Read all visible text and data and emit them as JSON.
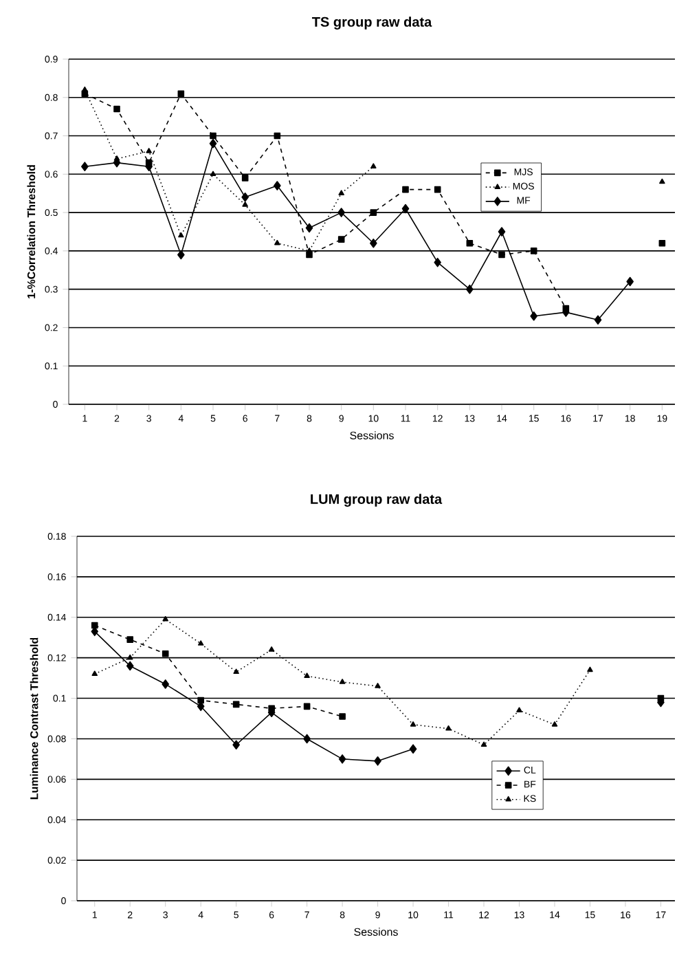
{
  "chart_data": [
    {
      "type": "line",
      "title": "TS group raw data",
      "xlabel": "Sessions",
      "ylabel": "1-%Correlation Threshold",
      "categories": [
        "1",
        "2",
        "3",
        "4",
        "5",
        "6",
        "7",
        "8",
        "9",
        "10",
        "11",
        "12",
        "13",
        "14",
        "15",
        "16",
        "17",
        "18",
        "19"
      ],
      "ylim": [
        0,
        0.9
      ],
      "yticks": [
        0,
        0.1,
        0.2,
        0.3,
        0.4,
        0.5,
        0.6,
        0.7,
        0.8,
        0.9
      ],
      "grid": "y",
      "legend": "top right",
      "series": [
        {
          "name": "MJS",
          "color": "#000000",
          "marker": "square",
          "line_style": "dashed",
          "values": [
            0.81,
            0.77,
            0.63,
            0.81,
            0.7,
            0.59,
            0.7,
            0.39,
            0.43,
            0.5,
            0.56,
            0.56,
            0.42,
            0.39,
            0.4,
            0.25,
            null,
            null,
            0.42
          ]
        },
        {
          "name": "MOS",
          "color": "#000000",
          "marker": "triangle",
          "line_style": "dotted",
          "values": [
            0.82,
            0.64,
            0.66,
            0.44,
            0.6,
            0.52,
            0.42,
            0.4,
            0.55,
            0.62,
            null,
            null,
            null,
            null,
            null,
            null,
            null,
            null,
            0.58
          ]
        },
        {
          "name": "MF",
          "color": "#000000",
          "marker": "diamond",
          "line_style": "solid",
          "values": [
            0.62,
            0.63,
            0.62,
            0.39,
            0.68,
            0.54,
            0.57,
            0.46,
            0.5,
            0.42,
            0.51,
            0.37,
            0.3,
            0.45,
            0.23,
            0.24,
            0.22,
            0.32,
            null
          ]
        }
      ]
    },
    {
      "type": "line",
      "title": "LUM group raw data",
      "xlabel": "Sessions",
      "ylabel": "Luminance Contrast Threshold",
      "categories": [
        "1",
        "2",
        "3",
        "4",
        "5",
        "6",
        "7",
        "8",
        "9",
        "10",
        "11",
        "12",
        "13",
        "14",
        "15",
        "16",
        "17"
      ],
      "ylim": [
        0,
        0.18
      ],
      "yticks": [
        0,
        0.02,
        0.04,
        0.06,
        0.08,
        {
          "value": 0.1,
          "label": "0.1"
        },
        0.12,
        0.14,
        0.16,
        0.18
      ],
      "grid": "y",
      "legend": "bottom right",
      "series": [
        {
          "name": "CL",
          "color": "#000000",
          "marker": "diamond",
          "line_style": "solid",
          "values": [
            0.133,
            0.116,
            0.107,
            0.096,
            0.077,
            0.093,
            0.08,
            0.07,
            0.069,
            0.075,
            null,
            null,
            null,
            null,
            null,
            null,
            0.098
          ]
        },
        {
          "name": "BF",
          "color": "#000000",
          "marker": "square",
          "line_style": "dashed",
          "values": [
            0.136,
            0.129,
            0.122,
            0.099,
            0.097,
            0.095,
            0.096,
            0.091,
            null,
            null,
            null,
            null,
            null,
            null,
            null,
            null,
            0.1
          ]
        },
        {
          "name": "KS",
          "color": "#000000",
          "marker": "triangle",
          "line_style": "dotted",
          "values": [
            0.112,
            0.12,
            0.139,
            0.127,
            0.113,
            0.124,
            0.111,
            0.108,
            0.106,
            0.087,
            0.085,
            0.077,
            0.094,
            0.087,
            0.114,
            null,
            null
          ]
        }
      ]
    }
  ]
}
